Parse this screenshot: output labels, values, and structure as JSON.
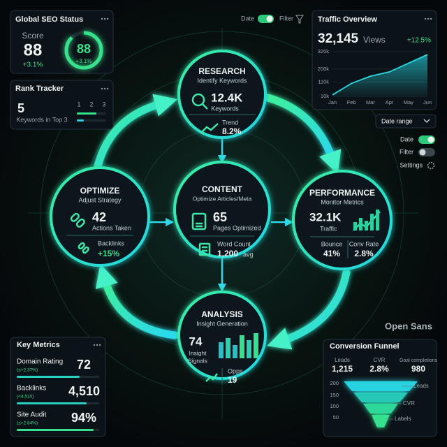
{
  "seo_status": {
    "title": "Global SEO Status",
    "label": "Score",
    "score": "88",
    "change": "+3.1%",
    "gauge_value": "88",
    "gauge_change": "+3.1%"
  },
  "rank_tracker": {
    "title": "Rank Tracker",
    "value": "5",
    "caption": "Keywords in Top 3",
    "columns": [
      "1",
      "2",
      "3"
    ]
  },
  "toolbar": {
    "date": "Date",
    "filter": "Filter"
  },
  "traffic": {
    "title": "Traffic Overview",
    "value": "32,145",
    "unit": "Views",
    "change": "+12.5%",
    "months": [
      "Jan",
      "Feb",
      "Mar",
      "Apr",
      "May",
      "Jun"
    ],
    "values": [
      20,
      100,
      150,
      180,
      240,
      300
    ],
    "ylim": [
      10,
      320
    ],
    "yticks": [
      {
        "value": 320,
        "label": "320k"
      },
      {
        "value": 200,
        "label": "200k"
      },
      {
        "value": 110,
        "label": "110k"
      },
      {
        "value": 10,
        "label": "10k"
      }
    ]
  },
  "date_range": "Date range",
  "settings": {
    "date": "Date",
    "filter": "Filter",
    "settings": "Settings"
  },
  "cycle": {
    "research": {
      "title": "RESEARCH",
      "subtitle": "Identify Keywords",
      "value": "12.4K",
      "value_label": "Keywords",
      "trend_label": "Trend",
      "trend": "8.2%"
    },
    "optimize": {
      "title": "OPTIMIZE",
      "subtitle": "Adjust Strategy",
      "value": "42",
      "value_label": "Actions Taken",
      "backlinks_label": "Backlinks",
      "backlinks": "+15%"
    },
    "content": {
      "title": "CONTENT",
      "subtitle": "Optimize Articles/Meta",
      "value": "65",
      "value_label": "Pages Optimized",
      "word_count_label": "Word Count",
      "word_count": "1,200",
      "word_count_unit": "avg"
    },
    "performance": {
      "title": "PERFORMANCE",
      "subtitle": "Monitor Metrics",
      "value": "32.1K",
      "value_label": "Traffic",
      "bounce_label": "Bounce",
      "bounce": "41%",
      "conv_label": "Conv Rate",
      "conv": "2.8%"
    },
    "analysis": {
      "title": "ANALYSIS",
      "subtitle": "Insight Generation",
      "value": "74",
      "value_label_1": "Insight",
      "value_label_2": "Signals",
      "opps_label": "Opps",
      "opps": "19"
    }
  },
  "font_label": "Open Sans",
  "key_metrics": {
    "title": "Key Metrics",
    "rows": [
      {
        "label": "Domain Rating",
        "sub": "(≤+2.37%)",
        "value": "72"
      },
      {
        "label": "Backlinks",
        "sub": "(<4,510)",
        "value": "4,510"
      },
      {
        "label": "Site Audit",
        "sub": "(≤+2.84%)",
        "value": "94%"
      }
    ]
  },
  "funnel": {
    "title": "Conversion Funnel",
    "stats": [
      {
        "label": "Leads",
        "value": "1,215"
      },
      {
        "label": "CVR",
        "value": "2.8%"
      },
      {
        "label": "Goal completions",
        "value": "980"
      }
    ],
    "axis": [
      "200",
      "150",
      "100",
      "50"
    ],
    "stage_labels": [
      "Leads",
      "CVR",
      "Labels"
    ]
  }
}
